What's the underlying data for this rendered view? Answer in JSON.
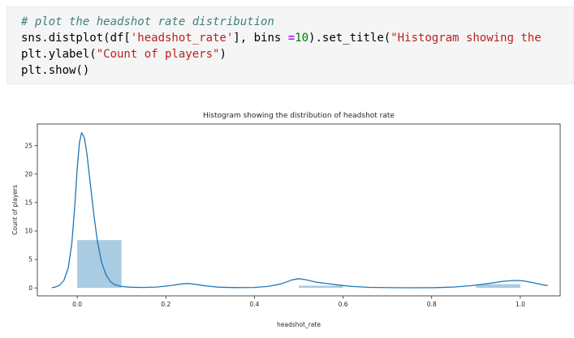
{
  "code_cell": {
    "token_colors": {
      "comment": "#408080",
      "string": "#ba2121",
      "num": "#008000",
      "op": "#aa22ff"
    },
    "lines": [
      {
        "tokens": [
          {
            "t": "# plot the headshot rate distribution",
            "c": "comment"
          }
        ]
      },
      {
        "tokens": [
          {
            "t": "sns.distplot(df[",
            "c": "plain"
          },
          {
            "t": "'headshot_rate'",
            "c": "string"
          },
          {
            "t": "], bins ",
            "c": "plain"
          },
          {
            "t": "=",
            "c": "op"
          },
          {
            "t": "10",
            "c": "num"
          },
          {
            "t": ").set_title(",
            "c": "plain"
          },
          {
            "t": "\"Histogram showing the",
            "c": "string"
          }
        ]
      },
      {
        "tokens": [
          {
            "t": "plt.ylabel(",
            "c": "plain"
          },
          {
            "t": "\"Count of players\"",
            "c": "string"
          },
          {
            "t": ")",
            "c": "plain"
          }
        ]
      },
      {
        "tokens": [
          {
            "t": "plt.show()",
            "c": "plain"
          }
        ]
      }
    ]
  },
  "chart_data": {
    "type": "bar",
    "title": "Histogram showing the distribution of headshot rate",
    "xlabel": "headshot_rate",
    "ylabel": "Count of players",
    "xlim": [
      -0.09,
      1.09
    ],
    "ylim": [
      -1.4,
      28.8
    ],
    "xticks": [
      0.0,
      0.2,
      0.4,
      0.6,
      0.8,
      1.0
    ],
    "xtick_labels": [
      "0.0",
      "0.2",
      "0.4",
      "0.6",
      "0.8",
      "1.0"
    ],
    "yticks": [
      0,
      5,
      10,
      15,
      20,
      25
    ],
    "ytick_labels": [
      "0",
      "5",
      "10",
      "15",
      "20",
      "25"
    ],
    "grid": false,
    "legend": "none",
    "bar_color": "#a9cce3",
    "line_color": "#2077b4",
    "axis_color": "#262626",
    "bars": [
      {
        "x0": 0.0,
        "x1": 0.1,
        "height": 8.4
      },
      {
        "x0": 0.5,
        "x1": 0.6,
        "height": 0.4
      },
      {
        "x0": 0.9,
        "x1": 1.0,
        "height": 0.65
      }
    ],
    "series": [
      {
        "name": "kde",
        "points": [
          [
            -0.057,
            0.05
          ],
          [
            -0.05,
            0.12
          ],
          [
            -0.04,
            0.45
          ],
          [
            -0.03,
            1.3
          ],
          [
            -0.02,
            3.6
          ],
          [
            -0.012,
            8.0
          ],
          [
            -0.005,
            15.0
          ],
          [
            0,
            21.0
          ],
          [
            0.005,
            25.5
          ],
          [
            0.01,
            27.3
          ],
          [
            0.016,
            26.4
          ],
          [
            0.022,
            23.5
          ],
          [
            0.03,
            18.0
          ],
          [
            0.038,
            12.5
          ],
          [
            0.046,
            8.0
          ],
          [
            0.055,
            4.5
          ],
          [
            0.065,
            2.3
          ],
          [
            0.075,
            1.1
          ],
          [
            0.085,
            0.55
          ],
          [
            0.1,
            0.25
          ],
          [
            0.12,
            0.12
          ],
          [
            0.15,
            0.08
          ],
          [
            0.18,
            0.15
          ],
          [
            0.21,
            0.4
          ],
          [
            0.235,
            0.7
          ],
          [
            0.25,
            0.78
          ],
          [
            0.265,
            0.65
          ],
          [
            0.29,
            0.35
          ],
          [
            0.32,
            0.12
          ],
          [
            0.36,
            0.05
          ],
          [
            0.4,
            0.08
          ],
          [
            0.43,
            0.25
          ],
          [
            0.46,
            0.7
          ],
          [
            0.485,
            1.4
          ],
          [
            0.5,
            1.62
          ],
          [
            0.515,
            1.45
          ],
          [
            0.54,
            1.0
          ],
          [
            0.565,
            0.75
          ],
          [
            0.59,
            0.5
          ],
          [
            0.62,
            0.25
          ],
          [
            0.66,
            0.1
          ],
          [
            0.71,
            0.04
          ],
          [
            0.76,
            0.03
          ],
          [
            0.81,
            0.06
          ],
          [
            0.85,
            0.15
          ],
          [
            0.89,
            0.4
          ],
          [
            0.93,
            0.8
          ],
          [
            0.96,
            1.15
          ],
          [
            0.985,
            1.3
          ],
          [
            1.005,
            1.25
          ],
          [
            1.03,
            0.9
          ],
          [
            1.05,
            0.55
          ],
          [
            1.062,
            0.4
          ]
        ]
      }
    ]
  }
}
